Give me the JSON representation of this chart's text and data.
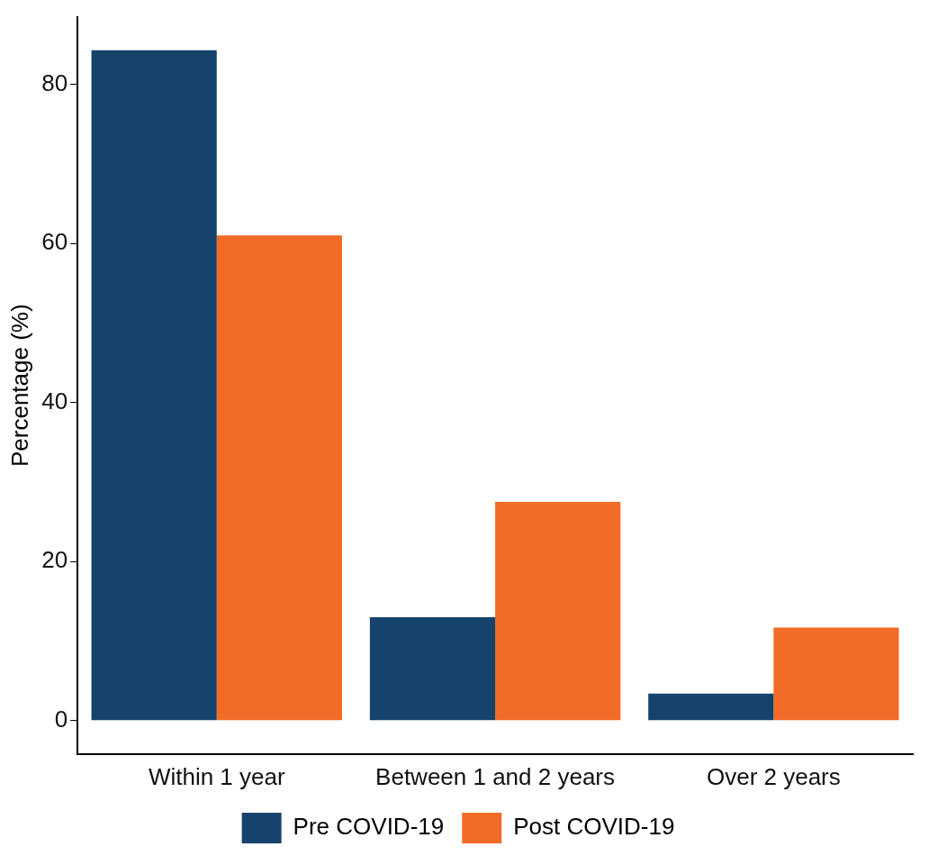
{
  "chart_data": {
    "type": "bar",
    "ylabel": "Percentage (%)",
    "categories": [
      "Within 1 year",
      "Between 1 and 2 years",
      "Over 2 years"
    ],
    "series": [
      {
        "name": "Pre COVID-19",
        "color": "#16436b",
        "values": [
          84.3,
          13,
          3.4
        ]
      },
      {
        "name": "Post COVID-19",
        "color": "#f26b27",
        "values": [
          61,
          27.5,
          11.7
        ]
      }
    ],
    "ylim": [
      -4.2,
      88.5
    ],
    "yticks": [
      0,
      20,
      40,
      60,
      80
    ],
    "grid": false,
    "legend": "bottom"
  }
}
